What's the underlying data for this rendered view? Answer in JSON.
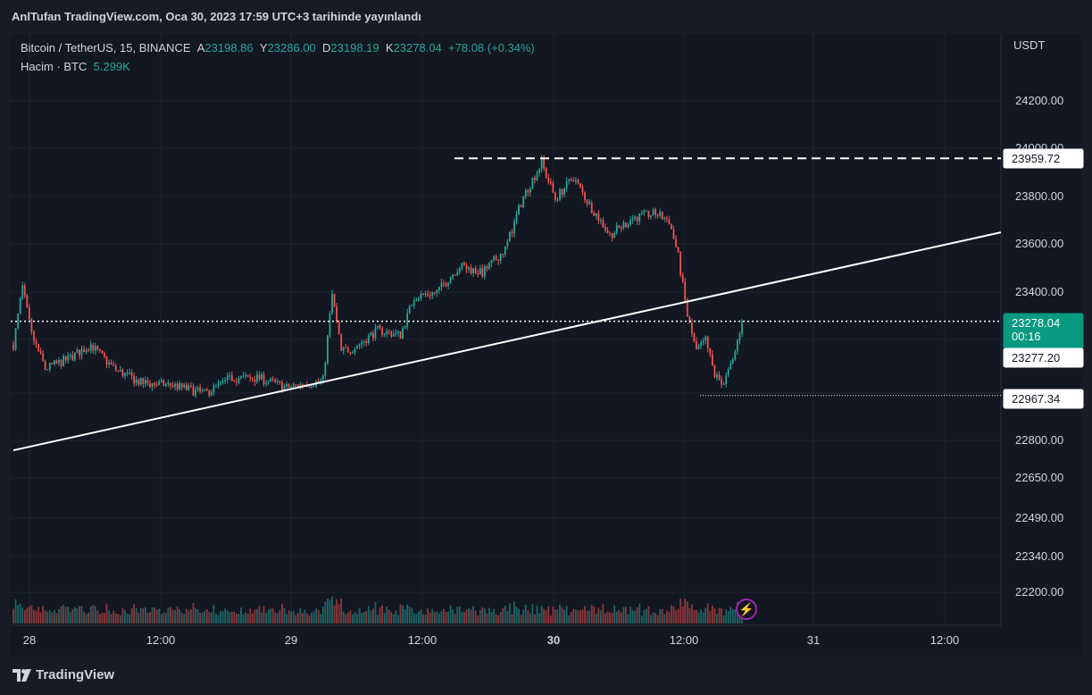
{
  "header": {
    "published": "AnlTufan TradingView.com, Oca 30, 2023 17:59 UTC+3 tarihinde yayınlandı"
  },
  "legend": {
    "symbol": "Bitcoin / TetherUS, 15, BINANCE",
    "open_label": "A",
    "open_value": "23198.86",
    "high_label": "Y",
    "high_value": "23286.00",
    "low_label": "D",
    "low_value": "23198.19",
    "close_label": "K",
    "close_value": "23278.04",
    "change": "+78.08 (+0.34%)",
    "volume_label": "Hacim · BTC",
    "volume_value": "5.299K"
  },
  "price_axis": {
    "currency": "USDT",
    "ticks": [
      "24200.00",
      "24000.00",
      "23800.00",
      "23600.00",
      "23400.00",
      "22800.00"
    ],
    "volume_ticks": [
      "22650.00",
      "22490.00",
      "22340.00",
      "22200.00"
    ]
  },
  "time_axis": {
    "ticks": [
      {
        "label": "28",
        "bold": false
      },
      {
        "label": "12:00",
        "bold": false
      },
      {
        "label": "29",
        "bold": false
      },
      {
        "label": "12:00",
        "bold": false
      },
      {
        "label": "30",
        "bold": true
      },
      {
        "label": "12:00",
        "bold": false
      },
      {
        "label": "31",
        "bold": false
      },
      {
        "label": "12:00",
        "bold": false
      }
    ]
  },
  "labels": {
    "high_marker": "23959.72",
    "current_price": "23278.04",
    "countdown": "00:16",
    "prev_close": "23277.20",
    "low_marker": "22967.34"
  },
  "footer": {
    "brand": "TradingView"
  },
  "colors": {
    "up": "#26a69a",
    "down": "#ef5350",
    "background": "#131722",
    "line": "#ffffff"
  },
  "chart_data": {
    "type": "candlestick",
    "title": "Bitcoin / TetherUS, 15, BINANCE",
    "ylabel": "USDT",
    "ylim": [
      22720,
      24300
    ],
    "price_path": [
      [
        0,
        23180
      ],
      [
        4,
        23420
      ],
      [
        8,
        23220
      ],
      [
        14,
        23080
      ],
      [
        24,
        23120
      ],
      [
        34,
        23180
      ],
      [
        44,
        23080
      ],
      [
        56,
        23020
      ],
      [
        70,
        23010
      ],
      [
        84,
        22975
      ],
      [
        96,
        23040
      ],
      [
        108,
        23040
      ],
      [
        120,
        23000
      ],
      [
        136,
        23030
      ],
      [
        140,
        23390
      ],
      [
        144,
        23150
      ],
      [
        150,
        23170
      ],
      [
        160,
        23240
      ],
      [
        170,
        23220
      ],
      [
        176,
        23380
      ],
      [
        186,
        23400
      ],
      [
        196,
        23510
      ],
      [
        206,
        23480
      ],
      [
        216,
        23580
      ],
      [
        224,
        23800
      ],
      [
        232,
        23940
      ],
      [
        238,
        23790
      ],
      [
        246,
        23880
      ],
      [
        252,
        23780
      ],
      [
        262,
        23640
      ],
      [
        272,
        23710
      ],
      [
        282,
        23730
      ],
      [
        288,
        23700
      ],
      [
        292,
        23550
      ],
      [
        296,
        23300
      ],
      [
        300,
        23150
      ],
      [
        304,
        23200
      ],
      [
        308,
        23050
      ],
      [
        312,
        23020
      ],
      [
        316,
        23110
      ],
      [
        320,
        23278.04
      ]
    ],
    "key_levels": {
      "high": 23959.72,
      "last_price": 23278.04,
      "prev_close": 23277.2,
      "low": 22967.34
    },
    "trendline": {
      "from": [
        0,
        22738
      ],
      "to": [
        415,
        23650
      ]
    }
  }
}
